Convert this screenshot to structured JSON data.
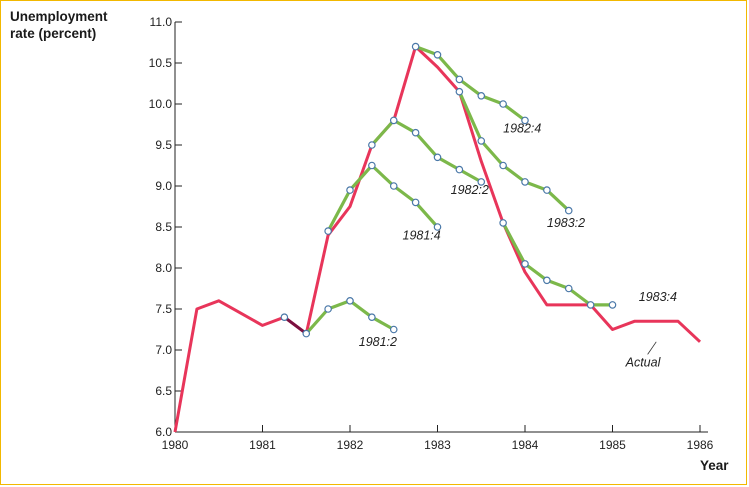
{
  "chart_data": {
    "type": "line",
    "ylabel_lines": [
      "Unemployment",
      "rate (percent)"
    ],
    "xlabel": "Year",
    "xlim": [
      1980,
      1986
    ],
    "ylim": [
      6.0,
      11.0
    ],
    "x_ticks": [
      "1980",
      "1981",
      "1982",
      "1983",
      "1984",
      "1985",
      "1986"
    ],
    "y_ticks": [
      "6.0",
      "6.5",
      "7.0",
      "7.5",
      "8.0",
      "8.5",
      "9.0",
      "9.5",
      "10.0",
      "10.5",
      "11.0"
    ],
    "grid": false,
    "colors": {
      "actual": "#e8355a",
      "forecast": "#7cb84a",
      "point_fill": "#ffffff",
      "point_stroke": "#4a78a8",
      "axis": "#222222",
      "connector": "#7a1040"
    },
    "series": [
      {
        "name": "Actual",
        "x": [
          1980.0,
          1980.25,
          1980.5,
          1980.75,
          1981.0,
          1981.25,
          1981.5,
          1981.75,
          1982.0,
          1982.25,
          1982.5,
          1982.75,
          1983.0,
          1983.25,
          1983.5,
          1983.75,
          1984.0,
          1984.25,
          1984.5,
          1984.75,
          1985.0,
          1985.25,
          1985.5,
          1985.75,
          1986.0
        ],
        "y": [
          6.0,
          7.5,
          7.6,
          7.45,
          7.3,
          7.4,
          7.2,
          8.4,
          8.75,
          9.5,
          9.8,
          10.7,
          10.45,
          10.15,
          9.3,
          8.55,
          7.95,
          7.55,
          7.55,
          7.55,
          7.25,
          7.35,
          7.35,
          7.35,
          7.1
        ]
      },
      {
        "name": "1981:2",
        "label_pos": [
          1982.1,
          7.05
        ],
        "x": [
          1981.5,
          1981.75,
          1982.0,
          1982.25,
          1982.5
        ],
        "y": [
          7.2,
          7.5,
          7.6,
          7.4,
          7.25
        ]
      },
      {
        "name": "1981:4",
        "label_pos": [
          1982.6,
          8.35
        ],
        "x": [
          1981.75,
          1982.0,
          1982.25,
          1982.5,
          1982.75,
          1983.0
        ],
        "y": [
          8.45,
          8.95,
          9.25,
          9.0,
          8.8,
          8.5
        ]
      },
      {
        "name": "1982:2",
        "label_pos": [
          1983.15,
          8.9
        ],
        "x": [
          1982.25,
          1982.5,
          1982.75,
          1983.0,
          1983.25,
          1983.5
        ],
        "y": [
          9.5,
          9.8,
          9.65,
          9.35,
          9.2,
          9.05
        ]
      },
      {
        "name": "1982:4",
        "label_pos": [
          1983.75,
          9.65
        ],
        "x": [
          1982.75,
          1983.0,
          1983.25,
          1983.5,
          1983.75,
          1984.0
        ],
        "y": [
          10.7,
          10.6,
          10.3,
          10.1,
          10.0,
          9.8
        ]
      },
      {
        "name": "1983:2",
        "label_pos": [
          1984.25,
          8.5
        ],
        "x": [
          1983.25,
          1983.5,
          1983.75,
          1984.0,
          1984.25,
          1984.5
        ],
        "y": [
          10.15,
          9.55,
          9.25,
          9.05,
          8.95,
          8.7
        ]
      },
      {
        "name": "1983:4",
        "label_pos": [
          1985.3,
          7.6
        ],
        "x": [
          1983.75,
          1984.0,
          1984.25,
          1984.5,
          1984.75,
          1985.0
        ],
        "y": [
          8.55,
          8.05,
          7.85,
          7.75,
          7.55,
          7.55
        ]
      }
    ],
    "annotations": [
      {
        "text": "Actual",
        "pos": [
          1985.15,
          6.8
        ],
        "arrow_to": [
          1985.5,
          7.1
        ]
      }
    ]
  }
}
